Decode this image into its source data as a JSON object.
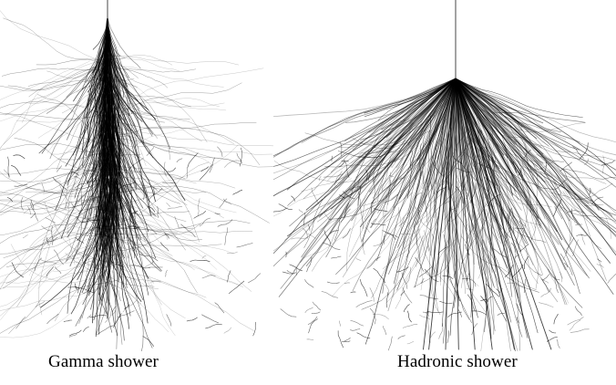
{
  "figure": {
    "panels": [
      {
        "id": "gamma",
        "caption": "Gamma shower"
      },
      {
        "id": "hadron",
        "caption": "Hadronic shower"
      }
    ],
    "colors": {
      "track": "#000000",
      "background": "#ffffff"
    }
  }
}
